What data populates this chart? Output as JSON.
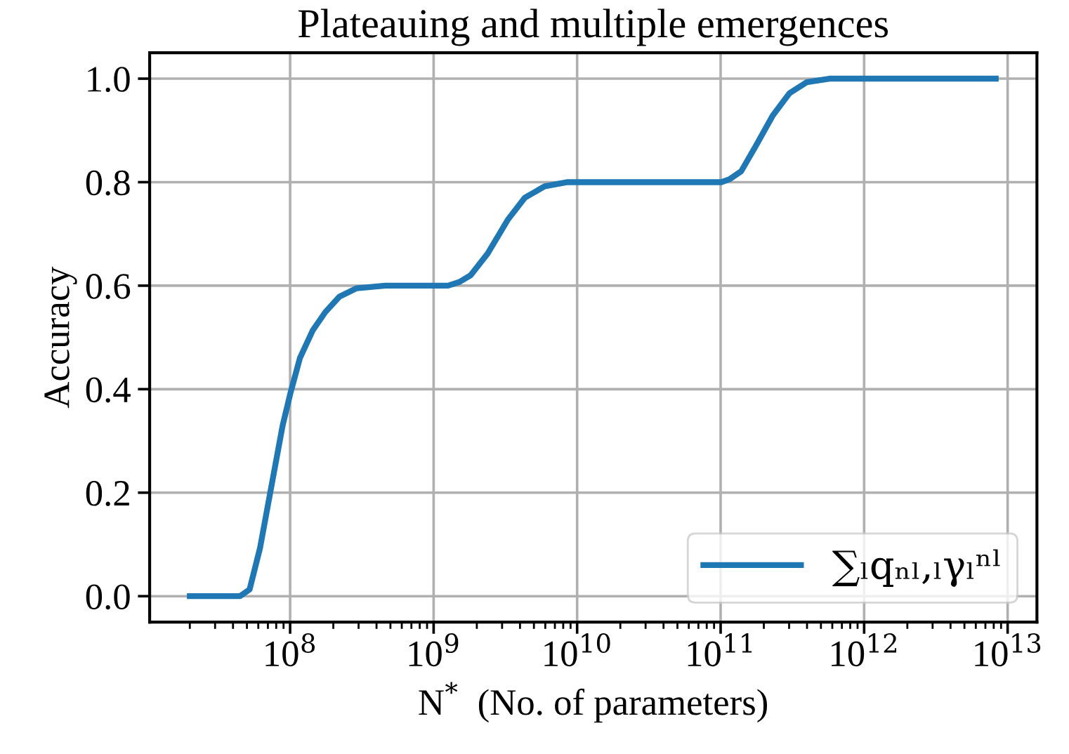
{
  "chart_data": {
    "type": "line",
    "title": "Plateauing and multiple emergences",
    "xlabel": "N$^{*}$  (No. of parameters)",
    "ylabel": "Accuracy",
    "log": "x",
    "xlim": [
      10500000.0,
      16000000000000.0
    ],
    "ylim": [
      -0.05,
      1.05
    ],
    "xticks": [
      {
        "value": 100000000.0,
        "label": "10$^{8}$"
      },
      {
        "value": 1000000000.0,
        "label": "10$^{9}$"
      },
      {
        "value": 10000000000.0,
        "label": "10$^{10}$"
      },
      {
        "value": 100000000000.0,
        "label": "10$^{11}$"
      },
      {
        "value": 1000000000000.0,
        "label": "10$^{12}$"
      },
      {
        "value": 10000000000000.0,
        "label": "10$^{13}$"
      }
    ],
    "yticks": [
      {
        "value": 0,
        "label": "0.0"
      },
      {
        "value": 0.2,
        "label": "0.2"
      },
      {
        "value": 0.4,
        "label": "0.4"
      },
      {
        "value": 0.6,
        "label": "0.6"
      },
      {
        "value": 0.8,
        "label": "0.8"
      },
      {
        "value": 1,
        "label": "1.0"
      }
    ],
    "grid": true,
    "legend": "bottom right",
    "marker": "none",
    "line_style": "solid",
    "series": [
      {
        "name": "∑ₗqₙₗ,ₗγₗⁿˡ",
        "color": "#1f77b4",
        "x": [
          20000000.0,
          44800000.0,
          52200000.0,
          61700000.0,
          74000000.0,
          88700000.0,
          100000000.0,
          117000000.0,
          144000000.0,
          176000000.0,
          221000000.0,
          291000000.0,
          460000000.0,
          1260000000.0,
          1510000000.0,
          1810000000.0,
          2380000000.0,
          3280000000.0,
          4320000000.0,
          5940000000.0,
          8570000000.0,
          101000000000.0,
          116000000000.0,
          139000000000.0,
          175000000000.0,
          230000000000.0,
          302000000000.0,
          397000000000.0,
          573000000000.0,
          8260000000000.0
        ],
        "values": [
          0,
          0,
          0.013,
          0.093,
          0.212,
          0.33,
          0.39,
          0.46,
          0.514,
          0.549,
          0.579,
          0.595,
          0.6,
          0.6,
          0.607,
          0.62,
          0.662,
          0.727,
          0.77,
          0.792,
          0.8,
          0.8,
          0.806,
          0.821,
          0.869,
          0.928,
          0.972,
          0.993,
          1.0,
          1.0
        ]
      }
    ]
  }
}
